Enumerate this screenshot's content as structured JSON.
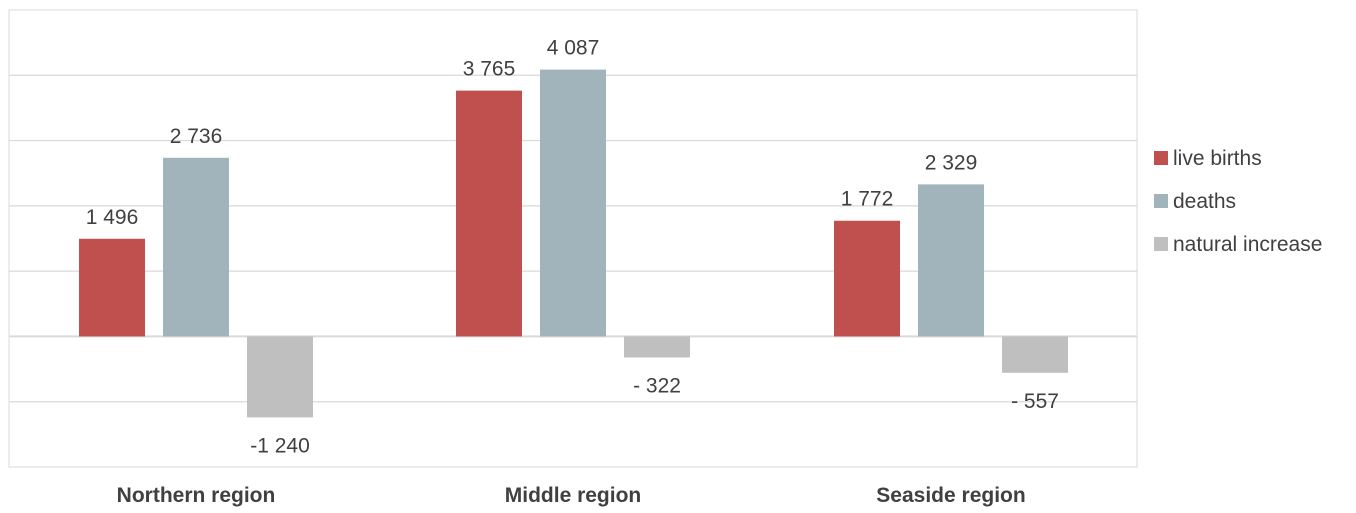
{
  "chart_data": {
    "type": "bar",
    "categories": [
      "Northern region",
      "Middle region",
      "Seaside region"
    ],
    "series": [
      {
        "name": "live births",
        "values": [
          1496,
          3765,
          1772
        ],
        "labels": [
          "1 496",
          "3 765",
          "1 772"
        ],
        "color": "#c0504d"
      },
      {
        "name": "deaths",
        "values": [
          2736,
          4087,
          2329
        ],
        "labels": [
          "2 736",
          "4 087",
          "2 329"
        ],
        "color": "#a2b4bb"
      },
      {
        "name": "natural increase",
        "values": [
          -1240,
          -322,
          -557
        ],
        "labels": [
          "-1 240",
          "- 322",
          "- 557"
        ],
        "color": "#bfbfbf"
      }
    ],
    "ylim": [
      -2000,
      5000
    ],
    "gridline_step": 1000,
    "grid": true,
    "legend": "right",
    "plot_border_color": "#d9d9d9",
    "grid_color": "#d9d9d9"
  }
}
